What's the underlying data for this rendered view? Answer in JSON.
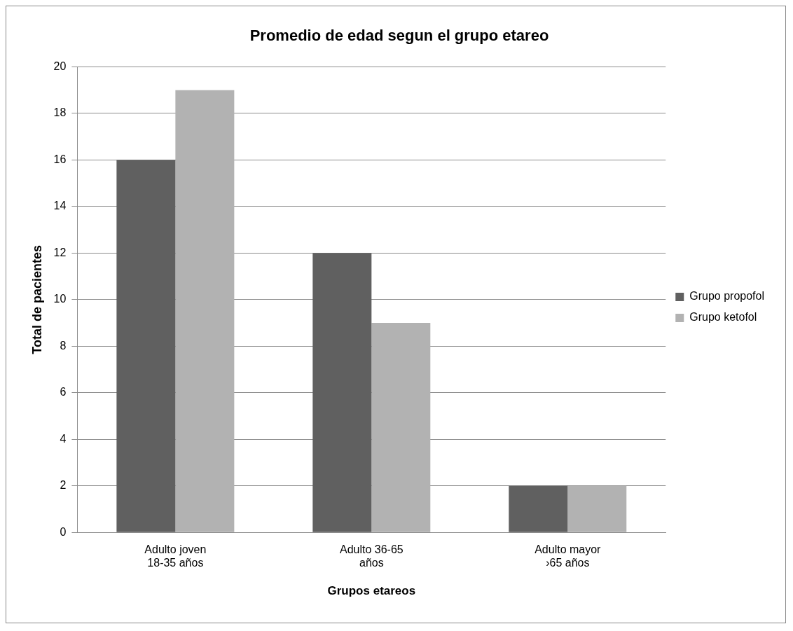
{
  "chart_data": {
    "type": "bar",
    "title": "Promedio de edad segun el grupo etareo",
    "xlabel": "Grupos etareos",
    "ylabel": "Total de pacientes",
    "categories": [
      "Adulto joven 18-35 años",
      "Adulto 36-65 años",
      "Adulto mayor ›65 años"
    ],
    "series": [
      {
        "name": "Grupo propofol",
        "color": "#606060",
        "values": [
          16,
          12,
          2
        ]
      },
      {
        "name": "Grupo ketofol",
        "color": "#b2b2b2",
        "values": [
          19,
          9,
          2
        ]
      }
    ],
    "ylim": [
      0,
      20
    ],
    "yticks": [
      0,
      2,
      4,
      6,
      8,
      10,
      12,
      14,
      16,
      18,
      20
    ],
    "grid": "y",
    "legend": "right"
  }
}
